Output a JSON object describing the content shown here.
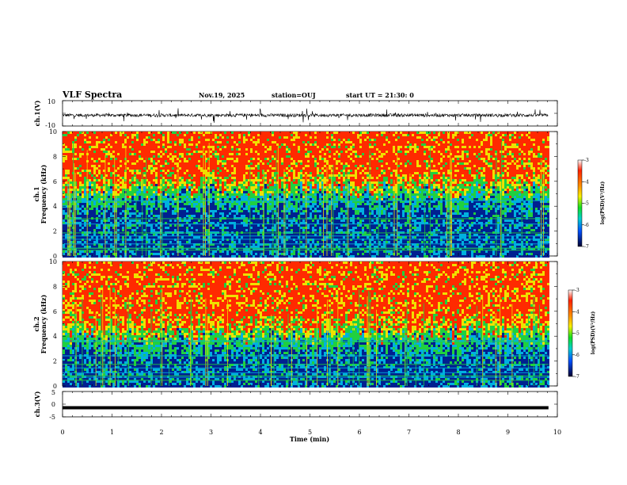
{
  "header": {
    "title": "VLF Spectra",
    "date": "Nov.19, 2025",
    "station": "station=OUJ",
    "start_ut": "start UT =  21:30: 0"
  },
  "colors": {
    "waveform": "#000000",
    "spectrogram_high": "#ff2a00",
    "spectrogram_mid": "#f0e000",
    "spectrogram_green": "#20d040",
    "spectrogram_cyan": "#00b0e0",
    "spectrogram_low": "#002090"
  },
  "chart_data": [
    {
      "type": "line",
      "name": "ch1-waveform",
      "ylabel": "ch.1(V)",
      "ylim": [
        -10,
        10
      ],
      "y_ticks": [
        "10",
        "-10"
      ],
      "xlim": [
        0,
        10
      ],
      "x_end_data": 9.82,
      "baseline": -1.5,
      "noise_amplitude": 2.5,
      "spike_amplitude": 6
    },
    {
      "type": "heatmap",
      "name": "ch1-spectrogram",
      "ylabel": "ch.1\nFrequency (kHz)",
      "ylabel_lines": [
        "ch.1",
        "Frequency (kHz)"
      ],
      "ylim": [
        0,
        10
      ],
      "y_ticks": [
        "0",
        "2",
        "4",
        "6",
        "8",
        "10"
      ],
      "xlim": [
        0,
        10
      ],
      "x_end_data": 9.82,
      "green_transition_khz": 5.2,
      "colorbar": {
        "label": "log(PSD)(V²/Hz)",
        "range": [
          -7,
          -3
        ],
        "ticks": [
          "-3",
          "-4",
          "-5",
          "-6",
          "-7"
        ]
      }
    },
    {
      "type": "heatmap",
      "name": "ch2-spectrogram",
      "ylabel": "ch.2\nFrequency (kHz)",
      "ylabel_lines": [
        "ch.2",
        "Frequency (kHz)"
      ],
      "ylim": [
        0,
        10
      ],
      "y_ticks": [
        "0",
        "2",
        "4",
        "6",
        "8",
        "10"
      ],
      "xlim": [
        0,
        10
      ],
      "x_end_data": 9.82,
      "green_transition_khz": 4.0,
      "colorbar": {
        "label": "log(PSD)(V²/Hz)",
        "range": [
          -7,
          -3
        ],
        "ticks": [
          "-3",
          "-4",
          "-5",
          "-6",
          "-7"
        ]
      }
    },
    {
      "type": "line",
      "name": "ch3-waveform",
      "ylabel": "ch.3(V)",
      "ylim": [
        -5,
        5
      ],
      "y_ticks": [
        "5",
        "0",
        "-5"
      ],
      "xlim": [
        0,
        10
      ],
      "x_end_data": 9.82,
      "baseline": -1.4,
      "xlabel": "Time (min)",
      "x_ticks": [
        "0",
        "1",
        "2",
        "3",
        "4",
        "5",
        "6",
        "7",
        "8",
        "9",
        "10"
      ]
    }
  ]
}
